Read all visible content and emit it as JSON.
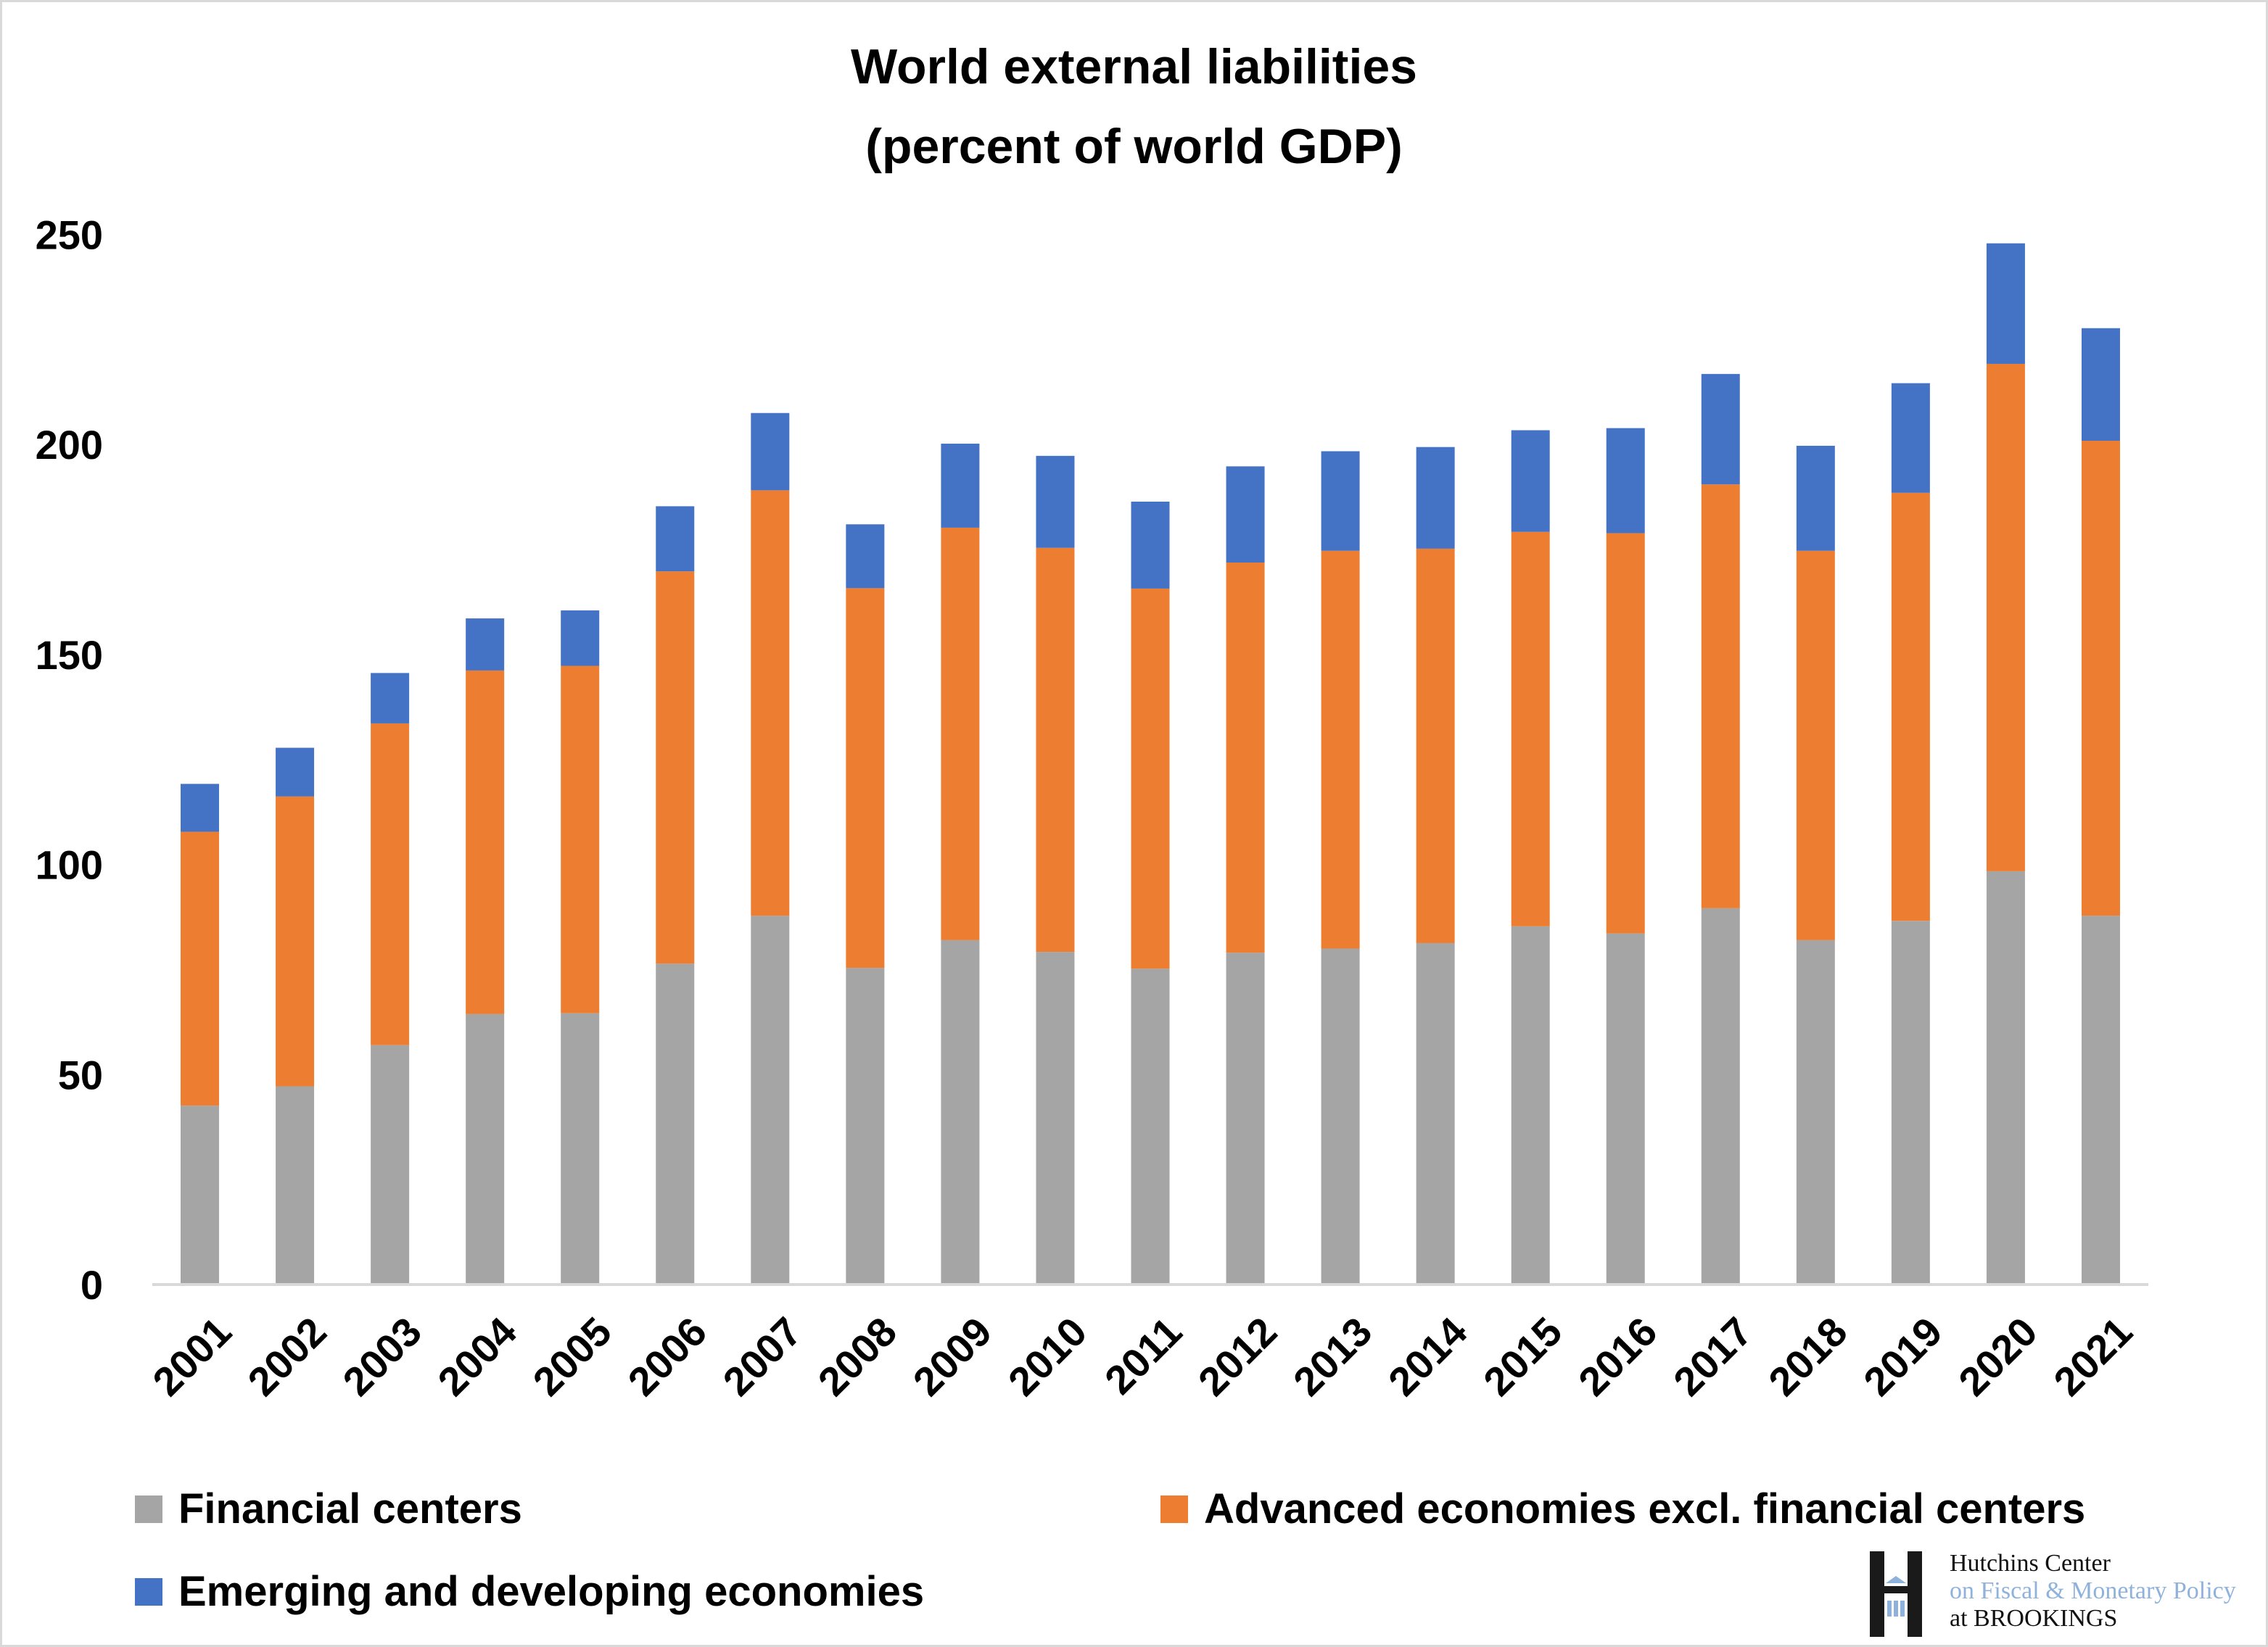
{
  "chart_data": {
    "type": "bar",
    "stacked": true,
    "title": "World external liabilities",
    "subtitle": "(percent of world GDP)",
    "xlabel": "",
    "ylabel": "",
    "ylim": [
      0,
      250
    ],
    "yticks": [
      0,
      50,
      100,
      150,
      200,
      250
    ],
    "grid": false,
    "legend_position": "bottom",
    "categories": [
      "2001",
      "2002",
      "2003",
      "2004",
      "2005",
      "2006",
      "2007",
      "2008",
      "2009",
      "2010",
      "2011",
      "2012",
      "2013",
      "2014",
      "2015",
      "2016",
      "2017",
      "2018",
      "2019",
      "2020",
      "2021"
    ],
    "series": [
      {
        "name": "Financial centers",
        "color": "#a5a5a5",
        "values": [
          42.6,
          47.2,
          57.0,
          64.4,
          64.6,
          76.4,
          87.8,
          75.4,
          82.0,
          79.2,
          75.2,
          79.0,
          80.0,
          81.3,
          85.3,
          83.6,
          89.6,
          82.0,
          86.6,
          98.4,
          87.8
        ]
      },
      {
        "name": "Advanced economies excl. financial centers",
        "color": "#ed7d31",
        "values": [
          65.2,
          69.0,
          76.6,
          81.8,
          82.7,
          93.4,
          101.3,
          90.4,
          98.2,
          96.2,
          90.5,
          92.9,
          94.7,
          93.9,
          93.9,
          95.3,
          100.9,
          92.7,
          101.9,
          120.8,
          113.1
        ]
      },
      {
        "name": "Emerging and developing economies",
        "color": "#4472c4",
        "values": [
          11.4,
          11.6,
          12.0,
          12.4,
          13.2,
          15.5,
          18.4,
          15.2,
          20.0,
          21.9,
          20.7,
          22.9,
          23.7,
          24.2,
          24.2,
          25.0,
          26.3,
          25.0,
          26.1,
          28.7,
          26.8
        ]
      }
    ],
    "totals": [
      119.2,
      127.8,
      145.6,
      158.6,
      160.5,
      185.3,
      207.5,
      181.0,
      200.2,
      197.3,
      186.4,
      194.8,
      198.4,
      199.4,
      203.4,
      203.9,
      216.8,
      199.7,
      214.6,
      247.9,
      227.7
    ]
  },
  "legend": [
    {
      "label": "Financial centers",
      "color": "#a5a5a5"
    },
    {
      "label": "Advanced economies excl. financial centers",
      "color": "#ed7d31"
    },
    {
      "label": "Emerging and developing economies",
      "color": "#4472c4"
    }
  ],
  "logo": {
    "line1": "Hutchins Center",
    "line2": "on Fiscal & Monetary Policy",
    "line3": "at BROOKINGS"
  }
}
